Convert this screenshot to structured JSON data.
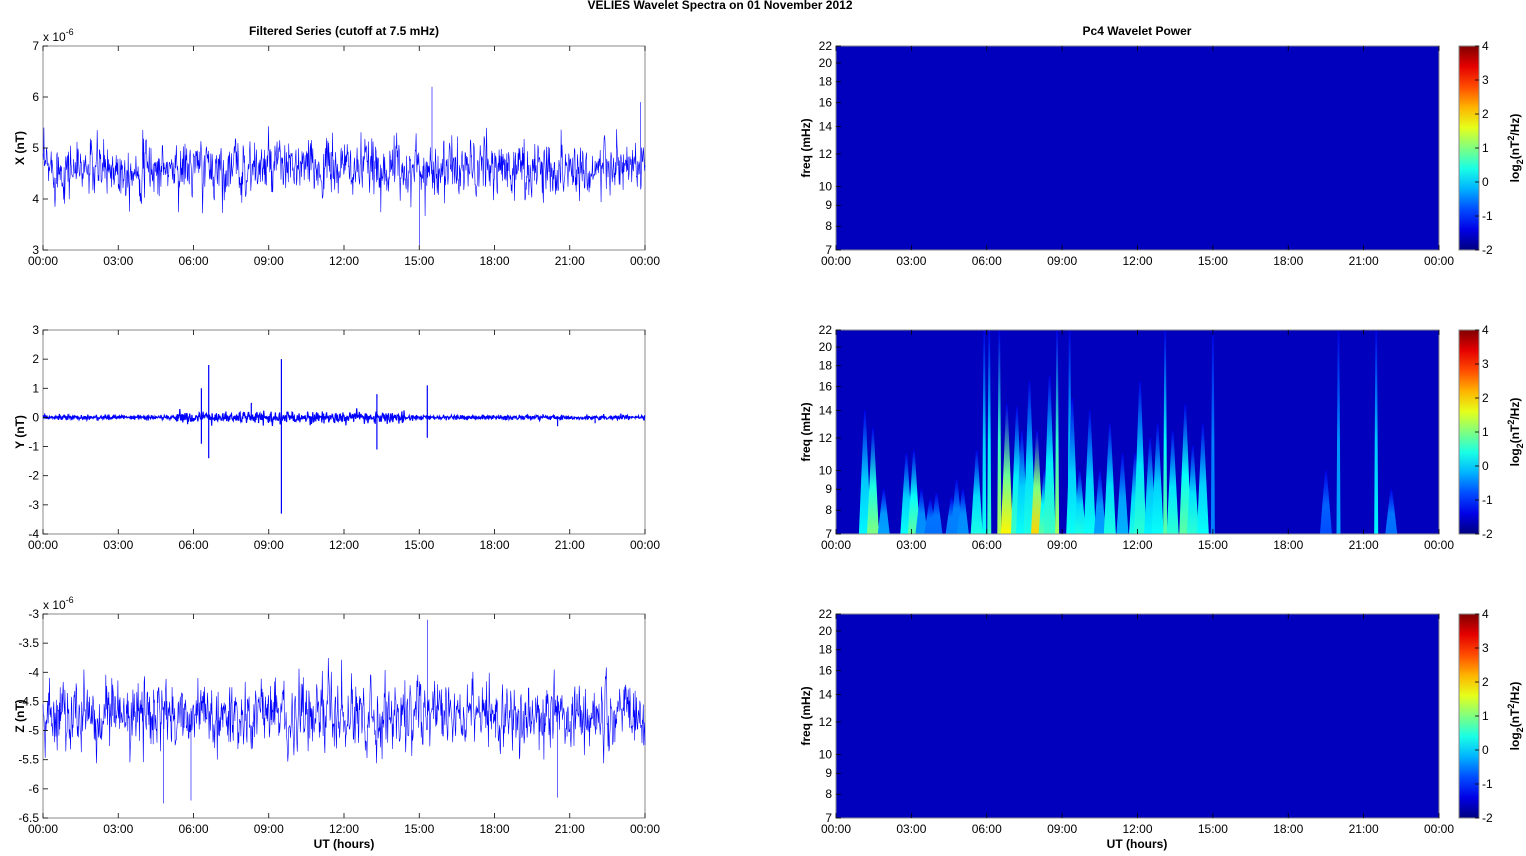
{
  "chart_data": {
    "type": "line+heatmap",
    "title": "VELIES Wavelet Spectra on 01 November  2012",
    "left_title": "Filtered Series (cutoff at 7.5 mHz)",
    "right_title": "Pc4 Wavelet Power",
    "xlabel": "UT (hours)",
    "x_ticks": [
      "00:00",
      "03:00",
      "06:00",
      "09:00",
      "12:00",
      "15:00",
      "18:00",
      "21:00",
      "00:00"
    ],
    "xlim_hours": [
      0,
      24
    ],
    "series_color": "#0000ff",
    "time_series": [
      {
        "name": "X",
        "ylabel": "X (nT)",
        "exponent": "x 10",
        "exponent_power": "-6",
        "ylim": [
          3,
          7
        ],
        "y_ticks": [
          "3",
          "4",
          "5",
          "6",
          "7"
        ],
        "mean": 4.6,
        "std": 0.33,
        "spikes": [
          [
            15.5,
            6.2
          ],
          [
            15.0,
            3.1
          ],
          [
            23.8,
            5.9
          ]
        ]
      },
      {
        "name": "Y",
        "ylabel": "Y (nT)",
        "exponent": "",
        "exponent_power": "",
        "ylim": [
          -4,
          3
        ],
        "y_ticks": [
          "-4",
          "-3",
          "-2",
          "-1",
          "0",
          "1",
          "2",
          "3"
        ],
        "mean": 0,
        "std": 0.04,
        "spikes": [
          [
            9.5,
            2.0
          ],
          [
            9.5,
            -3.3
          ],
          [
            6.6,
            1.8
          ],
          [
            6.6,
            -1.4
          ],
          [
            6.3,
            1.0
          ],
          [
            6.3,
            -0.9
          ],
          [
            15.3,
            1.1
          ],
          [
            15.3,
            -0.7
          ],
          [
            13.3,
            0.8
          ],
          [
            13.3,
            -1.1
          ],
          [
            8.3,
            0.5
          ],
          [
            20.5,
            -0.3
          ],
          [
            22.0,
            -0.2
          ]
        ]
      },
      {
        "name": "Z",
        "ylabel": "Z (nT)",
        "exponent": "x 10",
        "exponent_power": "-6",
        "ylim": [
          -6.5,
          -3
        ],
        "y_ticks": [
          "-6.5",
          "-6",
          "-5.5",
          "-5",
          "-4.5",
          "-4",
          "-3.5",
          "-3"
        ],
        "mean": -4.75,
        "std": 0.33,
        "spikes": [
          [
            15.3,
            -3.1
          ],
          [
            4.8,
            -6.25
          ],
          [
            20.5,
            -6.15
          ],
          [
            5.9,
            -6.2
          ]
        ]
      }
    ],
    "spectra": [
      {
        "name": "X",
        "ylabel": "freq (mHz)",
        "ylim": [
          7,
          22
        ],
        "y_ticks": [
          "7",
          "8",
          "9",
          "10",
          "12",
          "14",
          "16",
          "18",
          "20",
          "22"
        ],
        "bursts": []
      },
      {
        "name": "Y",
        "ylabel": "freq (mHz)",
        "ylim": [
          7,
          22
        ],
        "y_ticks": [
          "7",
          "8",
          "9",
          "10",
          "12",
          "14",
          "16",
          "18",
          "20",
          "22"
        ],
        "bursts": [
          [
            1.15,
            14,
            0.2
          ],
          [
            1.47,
            12.7,
            1.0
          ],
          [
            1.9,
            9,
            -0.3
          ],
          [
            2.8,
            11,
            0.3
          ],
          [
            3.1,
            11.2,
            0.8
          ],
          [
            3.4,
            9,
            -0.4
          ],
          [
            3.75,
            8.5,
            -0.6
          ],
          [
            4.0,
            8.8,
            -0.6
          ],
          [
            4.6,
            8.6,
            -0.5
          ],
          [
            4.8,
            9.5,
            -0.5
          ],
          [
            5.05,
            9,
            -0.4
          ],
          [
            5.6,
            11.2,
            0.4
          ],
          [
            5.9,
            22,
            0.3
          ],
          [
            6.1,
            22,
            0.6
          ],
          [
            6.5,
            22,
            1.3
          ],
          [
            6.8,
            14.5,
            1.8
          ],
          [
            7.2,
            14.3,
            0.6
          ],
          [
            7.4,
            12.5,
            0.3
          ],
          [
            7.7,
            16.5,
            0.4
          ],
          [
            8.0,
            12.5,
            2.0
          ],
          [
            8.3,
            10,
            0.8
          ],
          [
            8.5,
            17,
            0.6
          ],
          [
            8.8,
            22,
            1.2
          ],
          [
            9.3,
            22,
            0.2
          ],
          [
            9.4,
            15,
            0.3
          ],
          [
            9.7,
            10,
            0.4
          ],
          [
            10.1,
            14,
            0.3
          ],
          [
            10.5,
            10,
            -0.3
          ],
          [
            10.9,
            13,
            0.4
          ],
          [
            11.4,
            11,
            -0.2
          ],
          [
            11.9,
            11,
            0.4
          ],
          [
            12.1,
            16.5,
            0.5
          ],
          [
            12.5,
            12,
            0.2
          ],
          [
            12.8,
            13,
            0.3
          ],
          [
            13.1,
            22,
            0.8
          ],
          [
            13.4,
            12.5,
            0.5
          ],
          [
            13.9,
            14.5,
            0.8
          ],
          [
            14.2,
            11.5,
            0.5
          ],
          [
            14.6,
            13,
            0.3
          ],
          [
            15.0,
            22,
            -0.5
          ],
          [
            19.5,
            10,
            -0.8
          ],
          [
            20.0,
            22,
            -0.3
          ],
          [
            21.5,
            22,
            0.2
          ],
          [
            22.1,
            9,
            -0.6
          ]
        ]
      },
      {
        "name": "Z",
        "ylabel": "freq (mHz)",
        "ylim": [
          7,
          22
        ],
        "y_ticks": [
          "7",
          "8",
          "9",
          "10",
          "12",
          "14",
          "16",
          "18",
          "20",
          "22"
        ],
        "bursts": []
      }
    ],
    "colorbar": {
      "label": "log",
      "label_sub": "2",
      "label_rest1": "(nT",
      "label_sup": "2",
      "label_rest2": "/Hz)",
      "range": [
        -2,
        4
      ],
      "ticks": [
        "-2",
        "-1",
        "0",
        "1",
        "2",
        "3",
        "4"
      ],
      "colormap": "jet"
    }
  }
}
